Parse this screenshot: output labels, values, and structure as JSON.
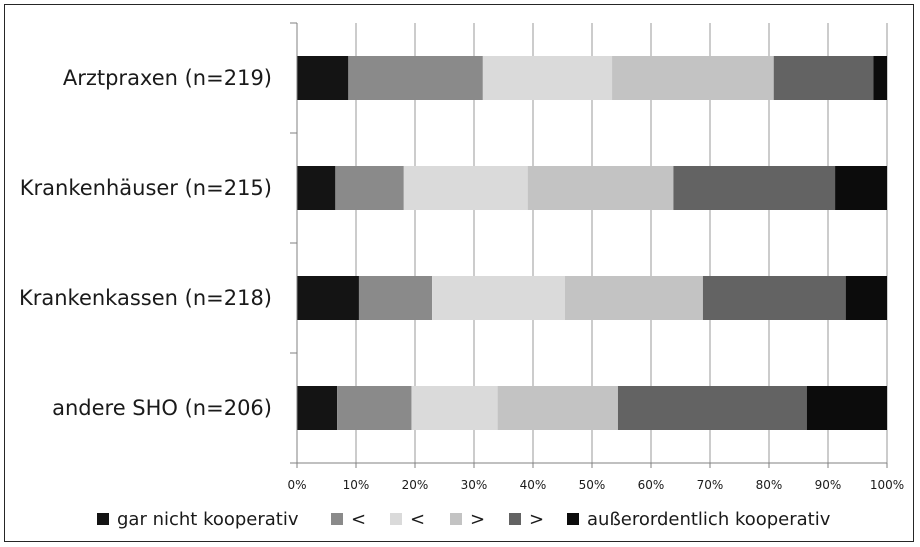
{
  "chart_data": {
    "type": "bar",
    "orientation": "horizontal",
    "stacked": "percent",
    "title": "",
    "xlabel": "",
    "ylabel": "",
    "xlim": [
      0,
      100
    ],
    "x_ticks": [
      "0%",
      "10%",
      "20%",
      "30%",
      "40%",
      "50%",
      "60%",
      "70%",
      "80%",
      "90%",
      "100%"
    ],
    "grid": "vertical",
    "legend": "bottom",
    "categories": [
      "Arztpraxen (n=219)",
      "Krankenhäuser (n=215)",
      "Krankenkassen (n=218)",
      "andere SHO (n=206)"
    ],
    "series": [
      {
        "name": "gar nicht kooperativ",
        "color": "#141414",
        "values": [
          8.7,
          6.5,
          10.5,
          6.8
        ]
      },
      {
        "name": "<",
        "color": "#8a8a8a",
        "values": [
          22.8,
          11.6,
          12.4,
          12.6
        ]
      },
      {
        "name": "<",
        "color": "#dadada",
        "values": [
          21.9,
          21.0,
          22.5,
          14.6
        ]
      },
      {
        "name": ">",
        "color": "#c3c3c3",
        "values": [
          27.4,
          24.7,
          23.4,
          20.4
        ]
      },
      {
        "name": ">",
        "color": "#636363",
        "values": [
          16.9,
          27.4,
          24.2,
          32.0
        ]
      },
      {
        "name": "außerordentlich kooperativ",
        "color": "#0c0c0c",
        "values": [
          2.3,
          8.8,
          7.0,
          13.6
        ]
      }
    ]
  }
}
